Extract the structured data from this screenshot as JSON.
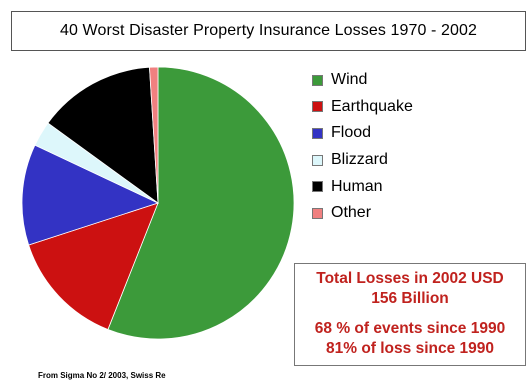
{
  "chart_data": {
    "type": "pie",
    "title": "40 Worst Disaster Property Insurance Losses 1970 - 2002",
    "slices": [
      {
        "label": "Wind",
        "value": 56,
        "color": "#3c9a3a"
      },
      {
        "label": "Earthquake",
        "value": 14,
        "color": "#cc1111"
      },
      {
        "label": "Flood",
        "value": 12,
        "color": "#3333c4"
      },
      {
        "label": "Blizzard",
        "value": 3,
        "color": "#ddf7fb"
      },
      {
        "label": "Human",
        "value": 14,
        "color": "#000000"
      },
      {
        "label": "Other",
        "value": 1,
        "color": "#f08080"
      }
    ],
    "legend_placement": "right"
  },
  "summary": {
    "line1": "Total Losses in 2002 USD",
    "line2": "156 Billion",
    "line3": "68 % of events since 1990",
    "line4": "81% of loss since 1990"
  },
  "source": "From Sigma No 2/ 2003,  Swiss Re"
}
